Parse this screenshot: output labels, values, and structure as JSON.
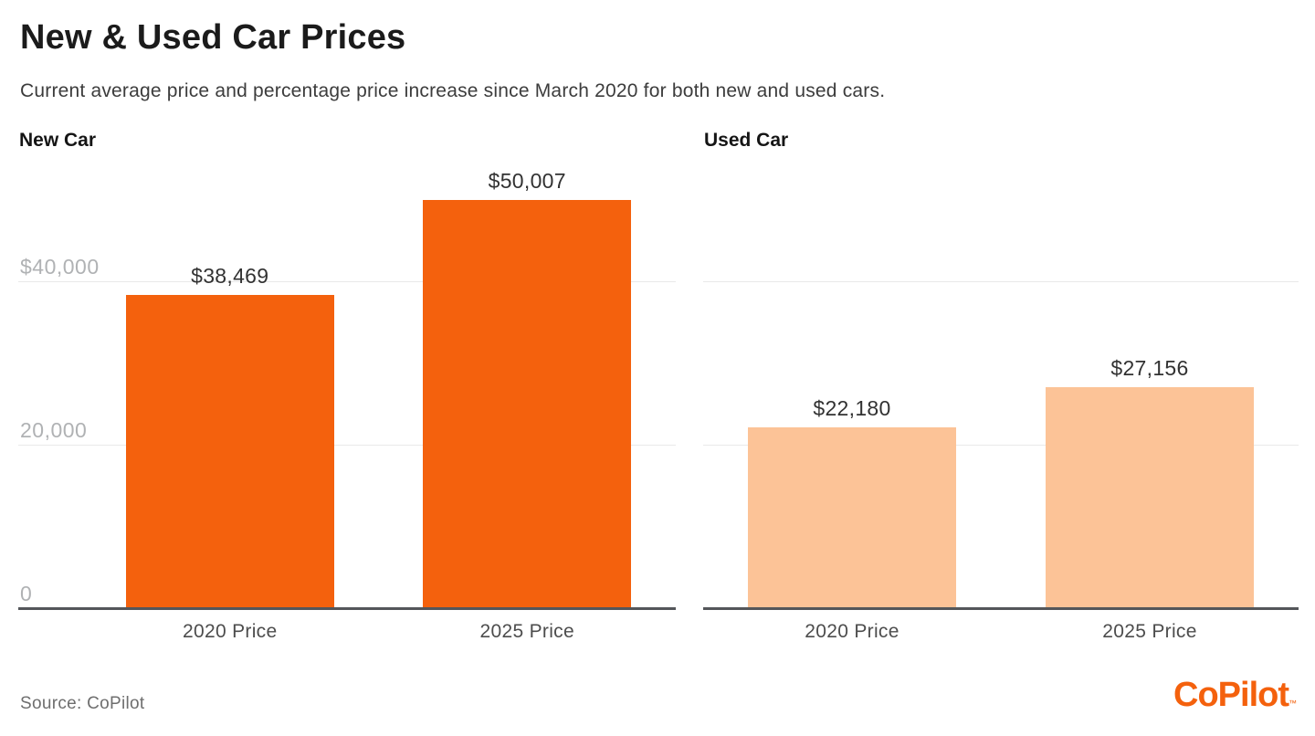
{
  "header": {
    "title": "New & Used Car Prices",
    "subtitle": "Current average price and percentage price increase since March 2020 for both new and used cars."
  },
  "chart_data": [
    {
      "type": "bar",
      "title": "New Car",
      "categories": [
        "2020 Price",
        "2025 Price"
      ],
      "values": [
        38469,
        50007
      ],
      "value_labels": [
        "$38,469",
        "$50,007"
      ],
      "yticks": [
        {
          "value": 0,
          "label": "0"
        },
        {
          "value": 20000,
          "label": "20,000"
        },
        {
          "value": 40000,
          "label": "$40,000"
        }
      ],
      "ylim": [
        0,
        55500
      ],
      "bar_color": "#F4610D",
      "grid": true,
      "legend": "none"
    },
    {
      "type": "bar",
      "title": "Used Car",
      "categories": [
        "2020 Price",
        "2025 Price"
      ],
      "values": [
        22180,
        27156
      ],
      "value_labels": [
        "$22,180",
        "$27,156"
      ],
      "yticks": [
        {
          "value": 20000,
          "label": ""
        },
        {
          "value": 40000,
          "label": ""
        }
      ],
      "ylim": [
        0,
        55500
      ],
      "bar_color": "#FCC397",
      "grid": true,
      "legend": "none"
    }
  ],
  "footer": {
    "source": "Source: CoPilot",
    "logo_text": "CoPilot",
    "logo_tm": "™",
    "logo_color": "#F4610D"
  },
  "colors": {
    "accent_orange": "#F4610D",
    "light_peach": "#FCC397",
    "axis_line": "#54565A",
    "gridline": "#E9E9E9"
  }
}
